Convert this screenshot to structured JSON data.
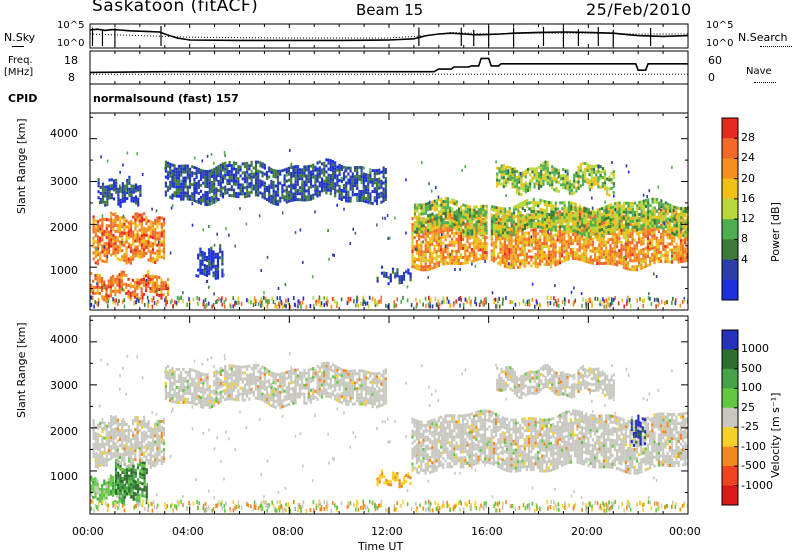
{
  "header": {
    "station": "Saskatoon (fitACF)",
    "beam": "Beam 15",
    "date": "25/Feb/2010"
  },
  "noise_panel": {
    "left_label": "N.Sky",
    "right_label": "N.Search",
    "y_ticks": [
      "10^5",
      "10^0"
    ],
    "sky_series": {
      "name": "N.Sky",
      "x_hours": [
        0,
        0.3,
        0.6,
        0.9,
        1.2,
        1.6,
        2.0,
        2.4,
        2.8,
        3.0,
        3.5,
        4,
        6,
        8,
        10,
        12,
        13,
        13.5,
        14,
        14.5,
        15,
        15.5,
        16,
        16.5,
        17,
        18,
        19,
        20,
        21,
        22,
        23,
        24
      ],
      "log_values": [
        4.0,
        4.2,
        3.9,
        4.1,
        4.0,
        3.8,
        3.7,
        3.6,
        3.5,
        3.0,
        2.0,
        1.5,
        1.4,
        1.4,
        1.4,
        1.5,
        1.8,
        2.6,
        3.0,
        3.2,
        3.0,
        2.8,
        2.9,
        3.0,
        3.2,
        3.4,
        3.5,
        3.4,
        3.2,
        2.6,
        2.4,
        2.6
      ]
    },
    "search_series": {
      "name": "N.Search",
      "x_hours": [
        0,
        4,
        8,
        12,
        13.5,
        14.5,
        16,
        18,
        20,
        22,
        24
      ],
      "log_values": [
        3.0,
        2.2,
        2.0,
        2.0,
        2.6,
        3.4,
        3.0,
        3.2,
        3.2,
        3.0,
        3.0
      ]
    }
  },
  "freq_panel": {
    "left_label_line1": "Freq.",
    "left_label_line2": "[MHz]",
    "left_ticks": [
      "18",
      "8"
    ],
    "right_label": "Nave",
    "right_ticks": [
      "60",
      "0"
    ],
    "freq_series": {
      "name": "Freq.",
      "x_hours": [
        0,
        3.0,
        13.8,
        14.0,
        14.5,
        14.6,
        15.2,
        15.3,
        15.6,
        15.7,
        16.0,
        16.1,
        16.4,
        16.5,
        21.9,
        22.0,
        22.3,
        22.4,
        24
      ],
      "values": [
        10.5,
        10.8,
        10.8,
        12.0,
        12.0,
        13.0,
        13.0,
        13.5,
        13.5,
        17.0,
        17.0,
        13.5,
        13.5,
        14.5,
        14.5,
        11.5,
        11.5,
        14.5,
        14.5
      ]
    },
    "nave_series": {
      "name": "Nave",
      "x_hours": [
        0,
        24
      ],
      "values": [
        18,
        18
      ]
    }
  },
  "cpid": {
    "label": "CPID",
    "text": "normalsound (fast) 157"
  },
  "power_panel": {
    "ylabel": "Slant Range [km]",
    "y_ticks": [
      "4000",
      "3000",
      "2000",
      "1000"
    ],
    "colorbar_label": "Power [dB]",
    "colorbar_ticks": [
      "28",
      "24",
      "20",
      "16",
      "12",
      "8",
      "4"
    ],
    "palette": [
      "#1d2fd8",
      "#2c3fa8",
      "#3d7a3a",
      "#4fae4f",
      "#b9d83a",
      "#f0c016",
      "#f5901f",
      "#f26a2a",
      "#e62a1e"
    ],
    "color_range": [
      0,
      32
    ]
  },
  "velocity_panel": {
    "ylabel": "Slant Range [km]",
    "y_ticks": [
      "4000",
      "3000",
      "2000",
      "1000"
    ],
    "colorbar_label": "Velocity [m s⁻¹]",
    "colorbar_ticks": [
      "1000",
      "500",
      "100",
      "25",
      "-25",
      "-100",
      "-500",
      "-1000"
    ],
    "palette": [
      "#2431b8",
      "#2e6f2e",
      "#47a347",
      "#62c842",
      "#c8c8c0",
      "#f5d028",
      "#f08a20",
      "#ee4422",
      "#dd1a1a"
    ]
  },
  "x_axis": {
    "label": "Time UT",
    "ticks": [
      "00:00",
      "04:00",
      "08:00",
      "12:00",
      "16:00",
      "20:00",
      "00:00"
    ]
  },
  "chart_data": [
    {
      "type": "heatmap",
      "title": "",
      "xlabel": "Time UT",
      "ylabel": "Slant Range [km]",
      "xlim_hours": [
        0,
        24
      ],
      "ylim": [
        0,
        4600
      ],
      "colorbar": "Power [dB]",
      "color_range": [
        0,
        32
      ],
      "bands": [
        {
          "x_hours": [
            0.0,
            3.1
          ],
          "range_km": [
            350,
            800
          ],
          "level": 0.85
        },
        {
          "x_hours": [
            0.1,
            3.0
          ],
          "range_km": [
            1200,
            2200
          ],
          "level": 0.8
        },
        {
          "x_hours": [
            0.3,
            2.0
          ],
          "range_km": [
            2550,
            3000
          ],
          "level": 0.1
        },
        {
          "x_hours": [
            3.0,
            11.9
          ],
          "range_km": [
            2600,
            3400
          ],
          "level": 0.12
        },
        {
          "x_hours": [
            4.3,
            5.3
          ],
          "range_km": [
            800,
            1400
          ],
          "level": 0.05
        },
        {
          "x_hours": [
            11.5,
            12.9
          ],
          "range_km": [
            700,
            900
          ],
          "level": 0.1
        },
        {
          "x_hours": [
            12.9,
            24.0
          ],
          "range_km": [
            1050,
            2300
          ],
          "level": 0.75
        },
        {
          "x_hours": [
            13.0,
            24.0
          ],
          "range_km": [
            1800,
            2500
          ],
          "level": 0.45
        },
        {
          "x_hours": [
            16.3,
            21.0
          ],
          "range_km": [
            2800,
            3350
          ],
          "level": 0.45
        }
      ]
    },
    {
      "type": "heatmap",
      "title": "",
      "xlabel": "Time UT",
      "ylabel": "Slant Range [km]",
      "xlim_hours": [
        0,
        24
      ],
      "ylim": [
        0,
        4600
      ],
      "colorbar": "Velocity [m s⁻¹]",
      "color_levels": [
        1000,
        500,
        100,
        25,
        -25,
        -100,
        -500,
        -1000
      ],
      "bands": [
        {
          "x_hours": [
            0.0,
            2.0
          ],
          "range_km": [
            350,
            800
          ],
          "velocity": 100
        },
        {
          "x_hours": [
            1.0,
            2.3
          ],
          "range_km": [
            400,
            1200
          ],
          "velocity": 500
        },
        {
          "x_hours": [
            0.1,
            3.0
          ],
          "range_km": [
            1200,
            2200
          ],
          "velocity": 0
        },
        {
          "x_hours": [
            3.0,
            11.9
          ],
          "range_km": [
            2600,
            3400
          ],
          "velocity": 0
        },
        {
          "x_hours": [
            11.5,
            12.9
          ],
          "range_km": [
            700,
            900
          ],
          "velocity": -100
        },
        {
          "x_hours": [
            12.9,
            24.0
          ],
          "range_km": [
            1050,
            2300
          ],
          "velocity": 0
        },
        {
          "x_hours": [
            16.3,
            21.0
          ],
          "range_km": [
            2800,
            3350
          ],
          "velocity": 0
        },
        {
          "x_hours": [
            21.7,
            22.3
          ],
          "range_km": [
            1600,
            2200
          ],
          "velocity": 1000
        }
      ]
    }
  ]
}
